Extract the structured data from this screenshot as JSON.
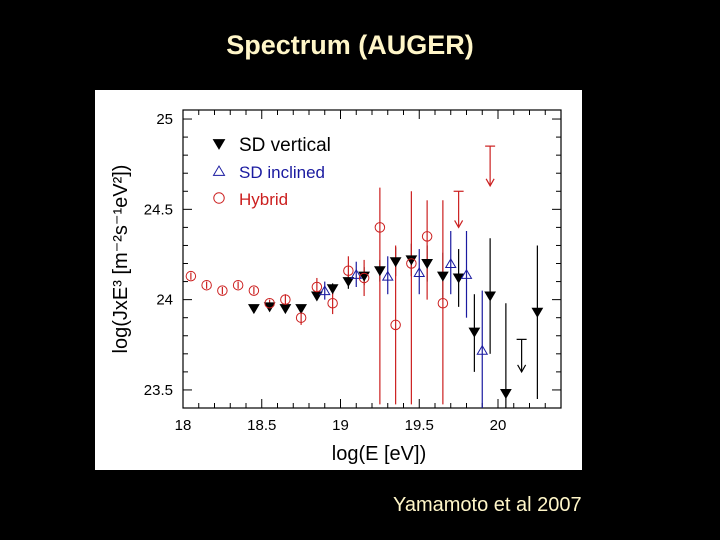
{
  "slide": {
    "title": "Spectrum  (AUGER)",
    "credit": "Yamamoto et al 2007"
  },
  "colors": {
    "background": "#000000",
    "title": "#fff6c8",
    "vertical": "#000000",
    "inclined": "#1a1aa0",
    "hybrid": "#cc2020"
  },
  "chart_data": {
    "type": "scatter",
    "title": "",
    "xlabel": "log(E [eV])",
    "ylabel": "log(JxE³ [m⁻²s⁻¹eV²])",
    "xlim": [
      18,
      20.4
    ],
    "ylim": [
      23.4,
      25.05
    ],
    "x_ticks": [
      "18",
      "18.5",
      "19",
      "19.5",
      "20"
    ],
    "y_ticks": [
      "23.5",
      "24",
      "24.5",
      "25"
    ],
    "grid": false,
    "legend_position": "top-left",
    "series": [
      {
        "name": "SD vertical",
        "marker": "filled-down-triangle",
        "color": "#000000",
        "points": [
          {
            "x": 18.45,
            "y": 23.95,
            "lo": 23.95,
            "hi": 23.95
          },
          {
            "x": 18.55,
            "y": 23.96,
            "lo": 23.96,
            "hi": 23.96
          },
          {
            "x": 18.65,
            "y": 23.95,
            "lo": 23.95,
            "hi": 23.95
          },
          {
            "x": 18.75,
            "y": 23.95,
            "lo": 23.95,
            "hi": 23.95
          },
          {
            "x": 18.85,
            "y": 24.02,
            "lo": 24.0,
            "hi": 24.04
          },
          {
            "x": 18.95,
            "y": 24.06,
            "lo": 24.03,
            "hi": 24.09
          },
          {
            "x": 19.05,
            "y": 24.1,
            "lo": 24.06,
            "hi": 24.14
          },
          {
            "x": 19.15,
            "y": 24.13,
            "lo": 24.08,
            "hi": 24.18
          },
          {
            "x": 19.25,
            "y": 24.16,
            "lo": 24.1,
            "hi": 24.22
          },
          {
            "x": 19.35,
            "y": 24.21,
            "lo": 24.13,
            "hi": 24.29
          },
          {
            "x": 19.45,
            "y": 24.22,
            "lo": 24.13,
            "hi": 24.31
          },
          {
            "x": 19.55,
            "y": 24.2,
            "lo": 24.1,
            "hi": 24.3
          },
          {
            "x": 19.65,
            "y": 24.13,
            "lo": 24.0,
            "hi": 24.26
          },
          {
            "x": 19.75,
            "y": 24.12,
            "lo": 23.96,
            "hi": 24.28
          },
          {
            "x": 19.85,
            "y": 23.82,
            "lo": 23.6,
            "hi": 24.03
          },
          {
            "x": 19.95,
            "y": 24.02,
            "lo": 23.7,
            "hi": 24.34
          },
          {
            "x": 20.05,
            "y": 23.48,
            "lo": 23.4,
            "hi": 23.98
          },
          {
            "x": 20.25,
            "y": 23.93,
            "lo": 23.45,
            "hi": 24.3
          }
        ],
        "upper_limits": [
          {
            "x": 20.15,
            "y": 23.78,
            "arrow_to": 23.6
          }
        ]
      },
      {
        "name": "SD inclined",
        "marker": "open-up-triangle",
        "color": "#1a1aa0",
        "points": [
          {
            "x": 18.9,
            "y": 24.05,
            "lo": 24.0,
            "hi": 24.1
          },
          {
            "x": 19.1,
            "y": 24.14,
            "lo": 24.07,
            "hi": 24.21
          },
          {
            "x": 19.3,
            "y": 24.13,
            "lo": 24.03,
            "hi": 24.24
          },
          {
            "x": 19.5,
            "y": 24.15,
            "lo": 24.03,
            "hi": 24.28
          },
          {
            "x": 19.7,
            "y": 24.2,
            "lo": 24.03,
            "hi": 24.38
          },
          {
            "x": 19.8,
            "y": 24.14,
            "lo": 23.9,
            "hi": 24.38
          },
          {
            "x": 19.9,
            "y": 23.72,
            "lo": 23.4,
            "hi": 24.05
          }
        ]
      },
      {
        "name": "Hybrid",
        "marker": "open-circle",
        "color": "#cc2020",
        "points": [
          {
            "x": 18.05,
            "y": 24.13,
            "lo": 24.11,
            "hi": 24.15
          },
          {
            "x": 18.15,
            "y": 24.08,
            "lo": 24.06,
            "hi": 24.1
          },
          {
            "x": 18.25,
            "y": 24.05,
            "lo": 24.03,
            "hi": 24.07
          },
          {
            "x": 18.35,
            "y": 24.08,
            "lo": 24.06,
            "hi": 24.1
          },
          {
            "x": 18.45,
            "y": 24.05,
            "lo": 24.03,
            "hi": 24.07
          },
          {
            "x": 18.55,
            "y": 23.98,
            "lo": 23.96,
            "hi": 24.0
          },
          {
            "x": 18.65,
            "y": 24.0,
            "lo": 23.97,
            "hi": 24.03
          },
          {
            "x": 18.75,
            "y": 23.9,
            "lo": 23.86,
            "hi": 23.94
          },
          {
            "x": 18.85,
            "y": 24.07,
            "lo": 24.02,
            "hi": 24.12
          },
          {
            "x": 18.95,
            "y": 23.98,
            "lo": 23.92,
            "hi": 24.04
          },
          {
            "x": 19.05,
            "y": 24.16,
            "lo": 24.08,
            "hi": 24.24
          },
          {
            "x": 19.15,
            "y": 24.12,
            "lo": 24.02,
            "hi": 24.22
          },
          {
            "x": 19.25,
            "y": 24.4,
            "lo": 23.42,
            "hi": 24.62
          },
          {
            "x": 19.35,
            "y": 23.86,
            "lo": 23.42,
            "hi": 24.3
          },
          {
            "x": 19.45,
            "y": 24.2,
            "lo": 23.42,
            "hi": 24.6
          },
          {
            "x": 19.55,
            "y": 24.35,
            "lo": 24.0,
            "hi": 24.55
          },
          {
            "x": 19.65,
            "y": 23.98,
            "lo": 23.42,
            "hi": 24.55
          }
        ],
        "upper_limits": [
          {
            "x": 19.75,
            "y": 24.6,
            "arrow_to": 24.4
          },
          {
            "x": 19.95,
            "y": 24.85,
            "arrow_to": 24.63
          }
        ]
      }
    ]
  }
}
